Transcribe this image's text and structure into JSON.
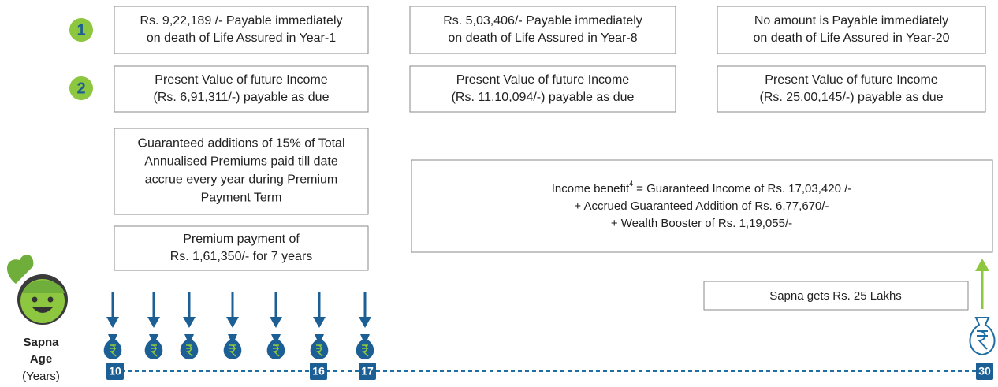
{
  "markers": [
    "1",
    "2"
  ],
  "columns": [
    {
      "death_benefit": [
        "Rs. 9,22,189 /- Payable immediately",
        "on death of Life Assured in Year-1"
      ],
      "present_value": [
        "Present Value of future Income",
        "(Rs. 6,91,311/-) payable as due"
      ]
    },
    {
      "death_benefit": [
        "Rs. 5,03,406/- Payable immediately",
        "on death of Life Assured in Year-8"
      ],
      "present_value": [
        "Present Value of future Income",
        "(Rs. 11,10,094/-) payable as due"
      ]
    },
    {
      "death_benefit": [
        "No amount is Payable immediately",
        "on death of Life Assured in Year-20"
      ],
      "present_value": [
        "Present Value of future Income",
        "(Rs. 25,00,145/-) payable as due"
      ]
    }
  ],
  "guaranteed_additions": [
    "Guaranteed additions of 15% of Total",
    "Annualised Premiums paid till date",
    "accrue every year during Premium",
    "Payment Term"
  ],
  "premium_payment": [
    "Premium payment of",
    "Rs. 1,61,350/- for 7 years"
  ],
  "income_benefit": {
    "label": "Income benefit",
    "superscript": "4",
    "lines": [
      "= Guaranteed Income of Rs. 17,03,420 /-",
      "+ Accrued Guaranteed Addition of Rs. 6,77,670/-",
      "+ Wealth Booster of Rs. 1,19,055/-"
    ]
  },
  "maturity": "Sapna gets Rs. 25 Lakhs",
  "axis_label": [
    "Sapna",
    "Age",
    "(Years)"
  ],
  "timeline": [
    "10",
    "16",
    "17",
    "30"
  ]
}
